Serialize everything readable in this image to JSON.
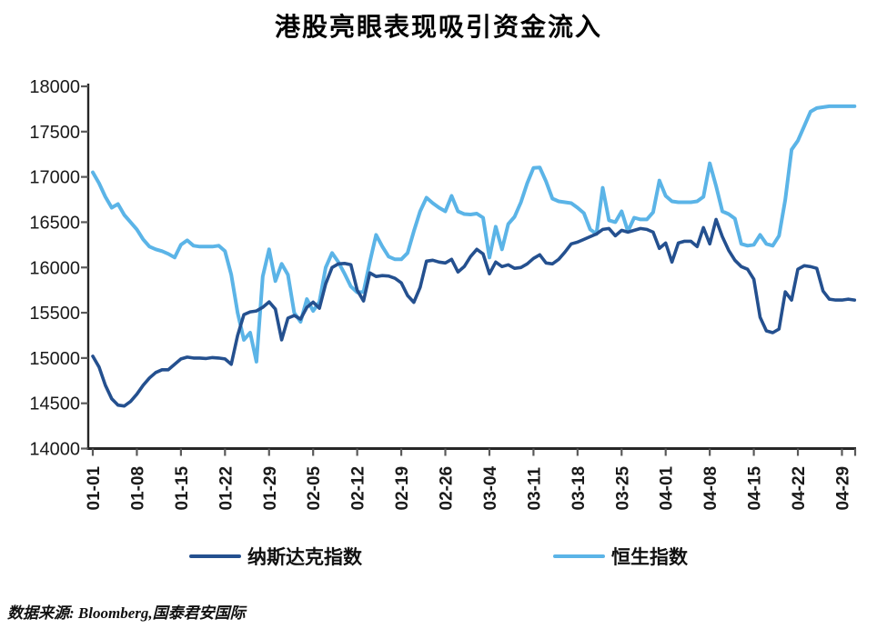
{
  "title": "港股亮眼表现吸引资金流入",
  "source_note": "数据来源: Bloomberg,国泰君安国际",
  "colors": {
    "nasdaq": "#24508F",
    "hang_seng": "#5BB4E7",
    "axis_line": "#262626",
    "tick": "#595959",
    "label_text": "#1a1a1a"
  },
  "legend": {
    "items": [
      {
        "label": "纳斯达克指数",
        "series": "nasdaq"
      },
      {
        "label": "恒生指数",
        "series": "hang_seng"
      }
    ]
  },
  "chart_data": {
    "type": "line",
    "title": "港股亮眼表现吸引资金流入",
    "xlabel": "",
    "ylabel": "",
    "ylim": [
      14000,
      18000
    ],
    "y_ticks": [
      14000,
      14500,
      15000,
      15500,
      16000,
      16500,
      17000,
      17500,
      18000
    ],
    "x_tick_labels": [
      "01-01",
      "01-08",
      "01-15",
      "01-22",
      "01-29",
      "02-05",
      "02-12",
      "02-19",
      "02-26",
      "03-04",
      "03-11",
      "03-18",
      "03-25",
      "04-01",
      "04-08",
      "04-15",
      "04-22",
      "04-29"
    ],
    "x_unit": "day-index from 01-01, one point per day",
    "grid": false,
    "legend_position": "bottom",
    "series": [
      {
        "name": "纳斯达克指数",
        "color": "#24508F",
        "values": [
          15020,
          14900,
          14700,
          14550,
          14480,
          14470,
          14520,
          14600,
          14700,
          14780,
          14840,
          14870,
          14870,
          14930,
          14990,
          15010,
          15000,
          15000,
          14995,
          15005,
          15000,
          14990,
          14930,
          15250,
          15480,
          15510,
          15520,
          15560,
          15620,
          15540,
          15200,
          15440,
          15470,
          15430,
          15560,
          15617,
          15550,
          15820,
          16000,
          16040,
          16045,
          16030,
          15750,
          15630,
          15940,
          15900,
          15910,
          15905,
          15880,
          15830,
          15690,
          15615,
          15780,
          16070,
          16080,
          16060,
          16050,
          16090,
          15950,
          16010,
          16120,
          16200,
          16150,
          15930,
          16060,
          16010,
          16030,
          15990,
          16000,
          16040,
          16100,
          16140,
          16050,
          16040,
          16090,
          16170,
          16260,
          16280,
          16310,
          16340,
          16370,
          16420,
          16430,
          16350,
          16410,
          16390,
          16410,
          16430,
          16420,
          16390,
          16210,
          16270,
          16060,
          16270,
          16290,
          16290,
          16230,
          16440,
          16260,
          16530,
          16340,
          16190,
          16080,
          16010,
          15980,
          15870,
          15450,
          15300,
          15280,
          15320,
          15730,
          15640,
          15980,
          16020,
          16010,
          15990,
          15740,
          15650,
          15640,
          15640,
          15650,
          15640
        ]
      },
      {
        "name": "恒生指数",
        "color": "#5BB4E7",
        "values": [
          17050,
          16930,
          16780,
          16660,
          16700,
          16580,
          16500,
          16420,
          16310,
          16230,
          16200,
          16180,
          16150,
          16110,
          16250,
          16300,
          16240,
          16230,
          16230,
          16230,
          16240,
          16180,
          15920,
          15500,
          15200,
          15280,
          14960,
          15900,
          16200,
          15850,
          16040,
          15920,
          15500,
          15400,
          15650,
          15520,
          15620,
          16000,
          16160,
          16060,
          15930,
          15790,
          15725,
          15730,
          16060,
          16360,
          16230,
          16120,
          16090,
          16090,
          16160,
          16400,
          16620,
          16770,
          16710,
          16660,
          16620,
          16790,
          16620,
          16590,
          16585,
          16595,
          16550,
          16110,
          16450,
          16200,
          16480,
          16560,
          16720,
          16930,
          17100,
          17105,
          16950,
          16760,
          16730,
          16720,
          16710,
          16660,
          16600,
          16420,
          16370,
          16880,
          16520,
          16500,
          16620,
          16400,
          16550,
          16530,
          16530,
          16610,
          16960,
          16790,
          16730,
          16720,
          16720,
          16720,
          16730,
          16780,
          17150,
          16900,
          16620,
          16590,
          16540,
          16260,
          16240,
          16250,
          16360,
          16260,
          16240,
          16350,
          16750,
          17300,
          17400,
          17560,
          17720,
          17760,
          17770,
          17780,
          17780,
          17780,
          17780,
          17780
        ]
      }
    ]
  }
}
